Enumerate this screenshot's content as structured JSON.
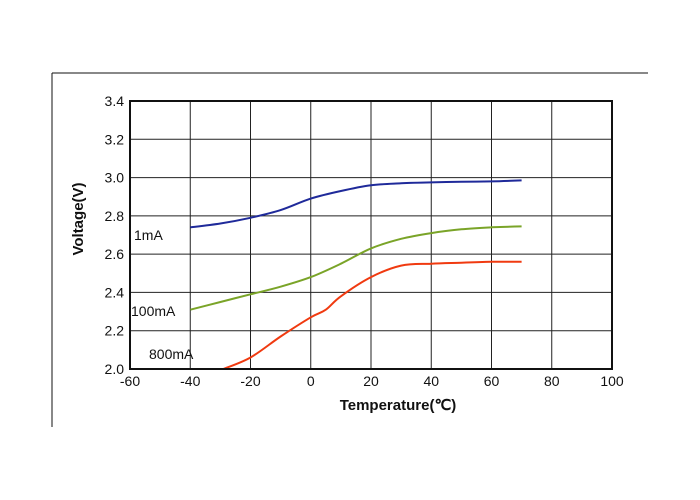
{
  "chart_data": {
    "type": "line",
    "xlabel": "Temperature(℃)",
    "ylabel": "Voltage(V)",
    "xlim": [
      -60,
      100
    ],
    "ylim": [
      2.0,
      3.4
    ],
    "xticks": [
      "-60",
      "-40",
      "-20",
      "0",
      "20",
      "40",
      "60",
      "80",
      "100"
    ],
    "yticks": [
      "2.0",
      "2.2",
      "2.4",
      "2.6",
      "2.8",
      "3.0",
      "3.2",
      "3.4"
    ],
    "grid": true,
    "series": [
      {
        "name": "1mA",
        "color": "#1f2a9a",
        "x": [
          -40,
          -30,
          -20,
          -10,
          0,
          10,
          20,
          30,
          40,
          50,
          60,
          70
        ],
        "y": [
          2.74,
          2.76,
          2.79,
          2.83,
          2.89,
          2.93,
          2.96,
          2.97,
          2.975,
          2.978,
          2.98,
          2.985
        ]
      },
      {
        "name": "100mA",
        "color": "#7aa428",
        "x": [
          -40,
          -30,
          -20,
          -10,
          0,
          10,
          20,
          30,
          40,
          50,
          60,
          70
        ],
        "y": [
          2.31,
          2.35,
          2.39,
          2.43,
          2.48,
          2.55,
          2.63,
          2.68,
          2.71,
          2.73,
          2.74,
          2.745
        ]
      },
      {
        "name": "800mA",
        "color": "#f03a10",
        "x": [
          -29,
          -20,
          -10,
          0,
          5,
          10,
          20,
          30,
          40,
          50,
          60,
          70
        ],
        "y": [
          2.0,
          2.06,
          2.17,
          2.27,
          2.31,
          2.38,
          2.48,
          2.54,
          2.55,
          2.555,
          2.56,
          2.56
        ]
      }
    ]
  }
}
